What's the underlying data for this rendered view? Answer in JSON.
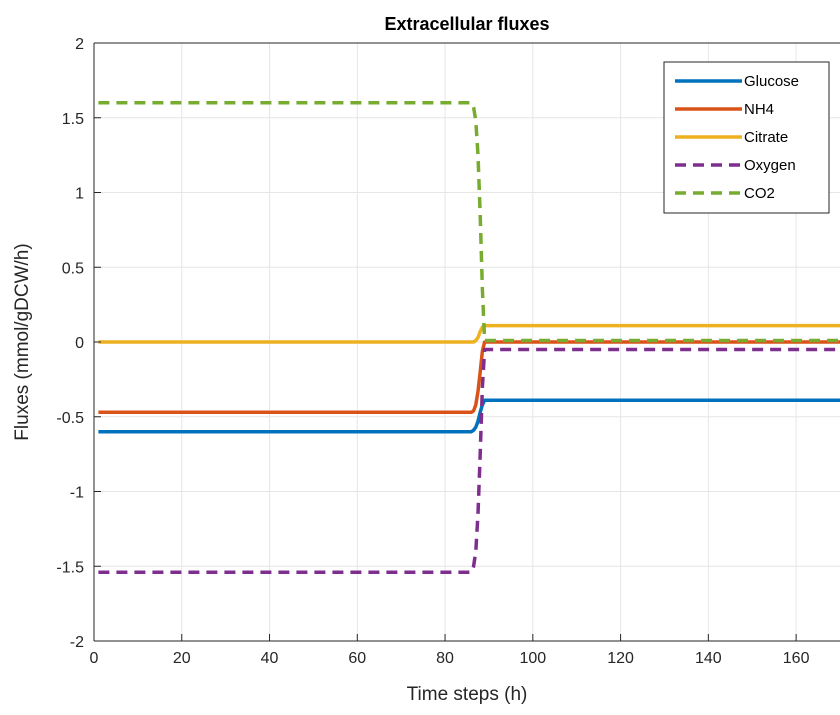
{
  "chart_data": {
    "type": "line",
    "title": "Extracellular fluxes",
    "xlabel": "Time steps (h)",
    "ylabel": "Fluxes (mmol/gDCW/h)",
    "xlim": [
      0,
      170
    ],
    "ylim": [
      -2,
      2
    ],
    "xticks": [
      0,
      20,
      40,
      60,
      80,
      100,
      120,
      140,
      160
    ],
    "yticks": [
      -2,
      -1.5,
      -1,
      -0.5,
      0,
      0.5,
      1,
      1.5,
      2
    ],
    "xtick_labels": [
      "0",
      "20",
      "40",
      "60",
      "80",
      "100",
      "120",
      "140",
      "160"
    ],
    "ytick_labels": [
      "-2",
      "-1.5",
      "-1",
      "-0.5",
      "0",
      "0.5",
      "1",
      "1.5",
      "2"
    ],
    "grid": true,
    "legend_position": "top-right",
    "series": [
      {
        "name": "Glucose",
        "color": "#0072BD",
        "dash": "solid",
        "x": [
          1,
          86,
          86.5,
          87,
          87.5,
          88,
          88.5,
          89,
          170
        ],
        "y": [
          -0.6,
          -0.6,
          -0.59,
          -0.57,
          -0.53,
          -0.47,
          -0.42,
          -0.39,
          -0.39
        ]
      },
      {
        "name": "NH4",
        "color": "#D95319",
        "dash": "solid",
        "x": [
          1,
          86,
          86.5,
          87,
          87.5,
          88,
          88.5,
          89,
          170
        ],
        "y": [
          -0.47,
          -0.47,
          -0.46,
          -0.42,
          -0.33,
          -0.2,
          -0.06,
          0.0,
          0.0
        ]
      },
      {
        "name": "Citrate",
        "color": "#EDB120",
        "dash": "solid",
        "x": [
          1,
          86,
          86.5,
          87,
          87.5,
          88,
          88.5,
          89,
          170
        ],
        "y": [
          0.0,
          0.0,
          0.0,
          0.01,
          0.03,
          0.07,
          0.1,
          0.11,
          0.11
        ]
      },
      {
        "name": "Oxygen",
        "color": "#7E2F8E",
        "dash": "dashed",
        "x": [
          1,
          86,
          86.5,
          87,
          87.5,
          88,
          88.5,
          89,
          170
        ],
        "y": [
          -1.54,
          -1.54,
          -1.5,
          -1.4,
          -1.15,
          -0.75,
          -0.3,
          -0.05,
          -0.05
        ]
      },
      {
        "name": "CO2",
        "color": "#77AC30",
        "dash": "dashed",
        "x": [
          1,
          86,
          86.5,
          87,
          87.5,
          88,
          88.5,
          89,
          170
        ],
        "y": [
          1.6,
          1.6,
          1.57,
          1.48,
          1.25,
          0.85,
          0.35,
          0.01,
          0.01
        ]
      }
    ]
  }
}
